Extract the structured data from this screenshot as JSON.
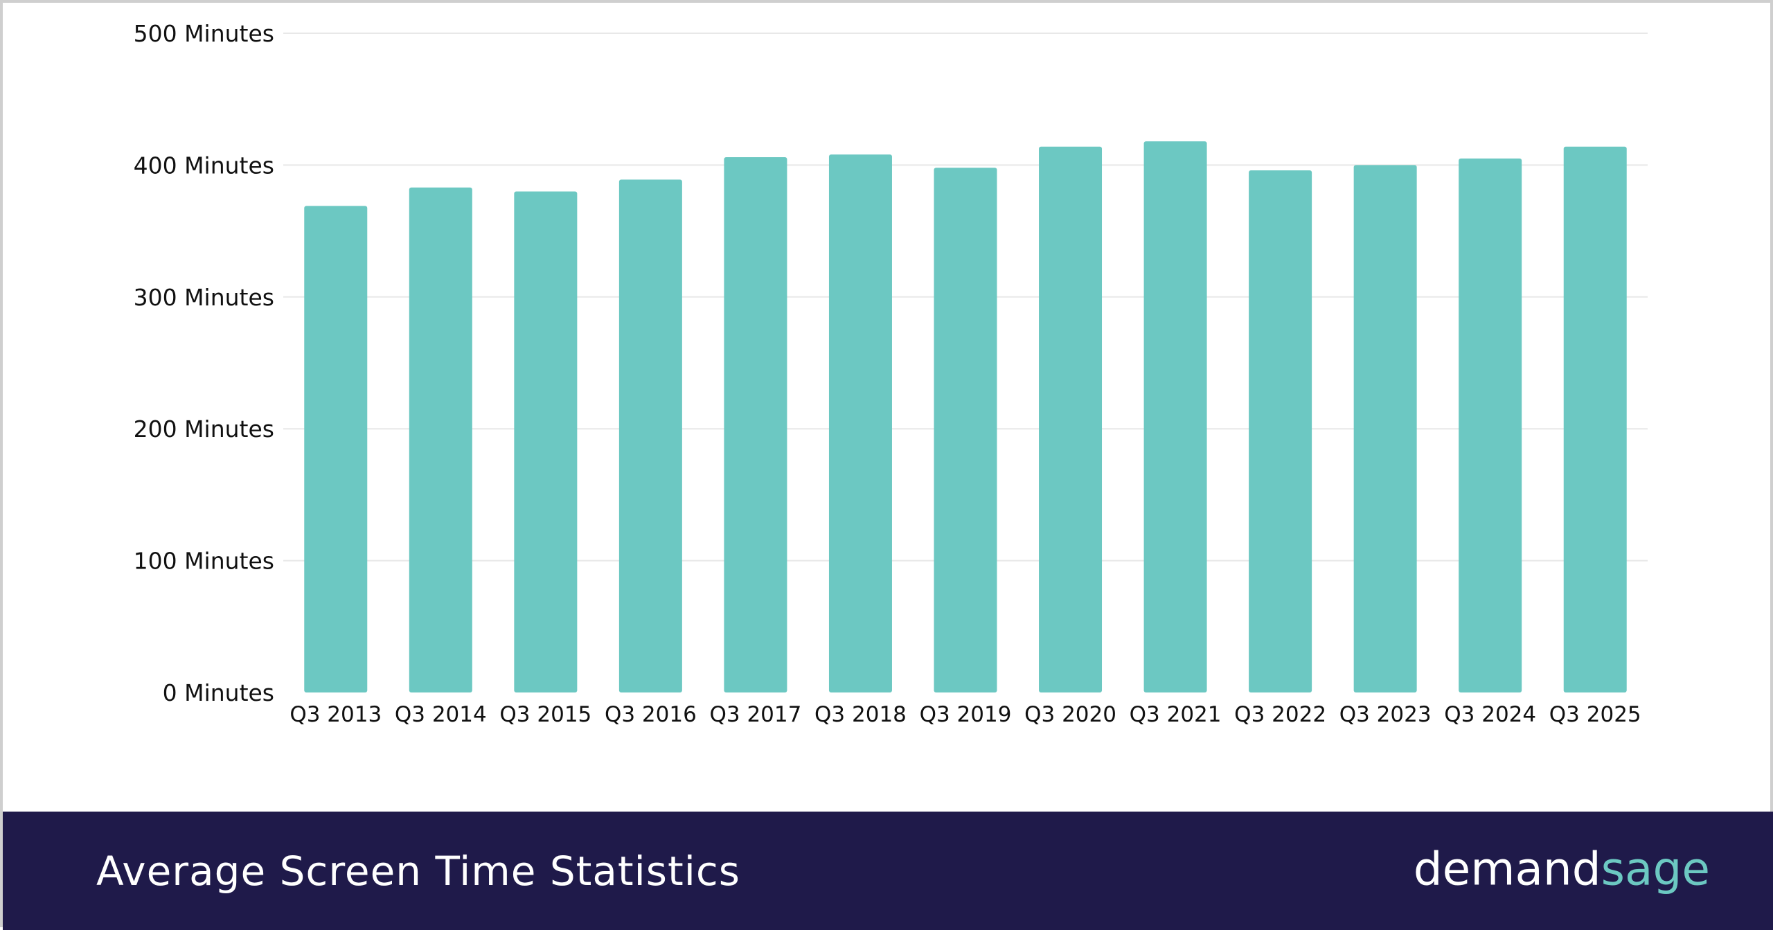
{
  "footer": {
    "title": "Average Screen Time Statistics",
    "brand_part1": "demand",
    "brand_part2": "sage"
  },
  "colors": {
    "bar": "#6cc8c2",
    "footer_bg": "#1f1a4a",
    "brand_accent": "#6cc8c2",
    "grid": "#e8e8e8"
  },
  "chart_data": {
    "type": "bar",
    "title": "",
    "xlabel": "",
    "ylabel": "",
    "ylim": [
      0,
      500
    ],
    "yticks": [
      0,
      100,
      200,
      300,
      400,
      500
    ],
    "ytick_labels": [
      "0 Minutes",
      "100 Minutes",
      "200 Minutes",
      "300 Minutes",
      "400 Minutes",
      "500 Minutes"
    ],
    "grid": true,
    "categories": [
      "Q3 2013",
      "Q3 2014",
      "Q3 2015",
      "Q3 2016",
      "Q3 2017",
      "Q3 2018",
      "Q3 2019",
      "Q3 2020",
      "Q3 2021",
      "Q3 2022",
      "Q3 2023",
      "Q3 2024",
      "Q3 2025"
    ],
    "values": [
      369,
      383,
      380,
      389,
      406,
      408,
      398,
      414,
      418,
      396,
      400,
      405,
      414
    ]
  }
}
